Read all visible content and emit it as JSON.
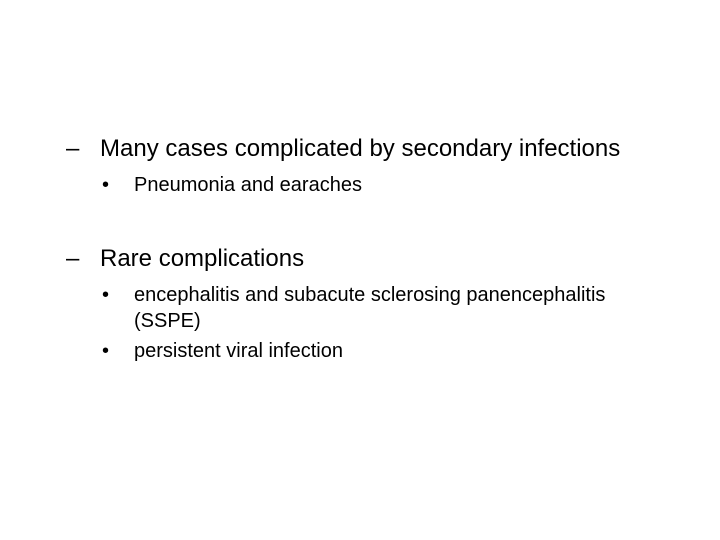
{
  "slide": {
    "background_color": "#ffffff",
    "text_color": "#000000",
    "font_family": "Arial",
    "blocks": [
      {
        "dash_text": "Many cases complicated by secondary infections",
        "bullets": [
          "Pneumonia and earaches"
        ]
      },
      {
        "dash_text": "Rare complications",
        "bullets": [
          "encephalitis and subacute sclerosing panencephalitis (SSPE)",
          "persistent viral infection"
        ]
      }
    ],
    "typography": {
      "dash_fontsize_pt": 24,
      "bullet_fontsize_pt": 20,
      "dash_marker": "–",
      "bullet_marker": "•"
    }
  }
}
